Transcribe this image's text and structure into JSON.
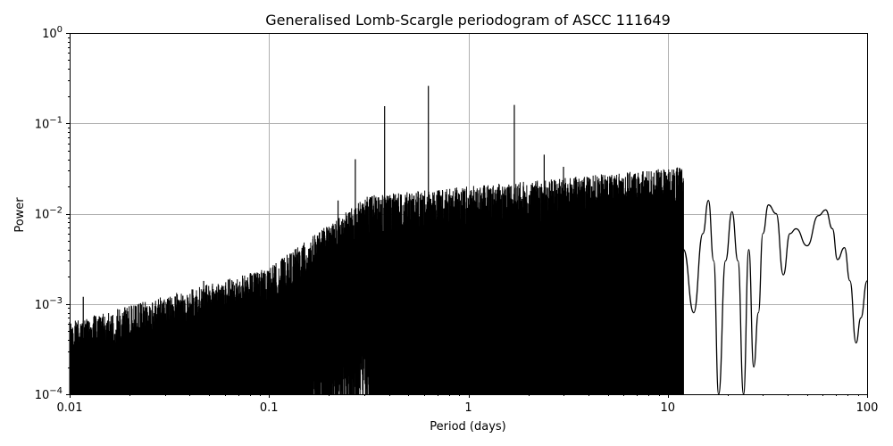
{
  "chart_data": {
    "type": "line",
    "title": "Generalised Lomb-Scargle periodogram of ASCC 111649",
    "xlabel": "Period (days)",
    "ylabel": "Power",
    "xscale": "log",
    "yscale": "log",
    "xlim": [
      0.01,
      100
    ],
    "ylim": [
      0.0001,
      1
    ],
    "grid": true,
    "line_color": "#000000",
    "x_ticks": [
      {
        "value": 0.01,
        "label": "0.01"
      },
      {
        "value": 0.1,
        "label": "0.1"
      },
      {
        "value": 1,
        "label": "1"
      },
      {
        "value": 10,
        "label": "10"
      },
      {
        "value": 100,
        "label": "100"
      }
    ],
    "y_ticks": [
      {
        "value": 0.0001,
        "base": "10",
        "exp": "−4"
      },
      {
        "value": 0.001,
        "base": "10",
        "exp": "−3"
      },
      {
        "value": 0.01,
        "base": "10",
        "exp": "−2"
      },
      {
        "value": 0.1,
        "base": "10",
        "exp": "−1"
      },
      {
        "value": 1,
        "base": "10",
        "exp": "0"
      }
    ],
    "peaks": [
      {
        "period": 0.0117,
        "power": 0.0012
      },
      {
        "period": 0.047,
        "power": 0.0018
      },
      {
        "period": 0.088,
        "power": 0.0022
      },
      {
        "period": 0.128,
        "power": 0.0035
      },
      {
        "period": 0.222,
        "power": 0.014
      },
      {
        "period": 0.271,
        "power": 0.04
      },
      {
        "period": 0.38,
        "power": 0.155
      },
      {
        "period": 0.63,
        "power": 0.26
      },
      {
        "period": 1.7,
        "power": 0.16
      },
      {
        "period": 2.4,
        "power": 0.045
      },
      {
        "period": 3.0,
        "power": 0.033
      },
      {
        "period": 16.0,
        "power": 0.014
      },
      {
        "period": 21.0,
        "power": 0.0105
      },
      {
        "period": 32.0,
        "power": 0.0125
      },
      {
        "period": 42.0,
        "power": 0.0068
      },
      {
        "period": 62.0,
        "power": 0.011
      },
      {
        "period": 77.0,
        "power": 0.0042
      },
      {
        "period": 100.0,
        "power": 0.0018
      }
    ],
    "smooth_tail": [
      {
        "period": 12.0,
        "power": 0.004
      },
      {
        "period": 13.5,
        "power": 0.0008
      },
      {
        "period": 15.0,
        "power": 0.006
      },
      {
        "period": 16.0,
        "power": 0.014
      },
      {
        "period": 17.0,
        "power": 0.003
      },
      {
        "period": 18.0,
        "power": 0.0001
      },
      {
        "period": 19.5,
        "power": 0.003
      },
      {
        "period": 21.0,
        "power": 0.0105
      },
      {
        "period": 22.5,
        "power": 0.003
      },
      {
        "period": 24.0,
        "power": 0.0001
      },
      {
        "period": 25.5,
        "power": 0.004
      },
      {
        "period": 27.0,
        "power": 0.0002
      },
      {
        "period": 28.5,
        "power": 0.0008
      },
      {
        "period": 30.0,
        "power": 0.006
      },
      {
        "period": 32.0,
        "power": 0.0125
      },
      {
        "period": 35.0,
        "power": 0.01
      },
      {
        "period": 38.0,
        "power": 0.0021
      },
      {
        "period": 41.0,
        "power": 0.006
      },
      {
        "period": 44.0,
        "power": 0.0068
      },
      {
        "period": 50.0,
        "power": 0.0044
      },
      {
        "period": 57.0,
        "power": 0.0095
      },
      {
        "period": 62.0,
        "power": 0.011
      },
      {
        "period": 67.0,
        "power": 0.0068
      },
      {
        "period": 71.0,
        "power": 0.0031
      },
      {
        "period": 77.0,
        "power": 0.0042
      },
      {
        "period": 82.0,
        "power": 0.0018
      },
      {
        "period": 88.0,
        "power": 0.00037
      },
      {
        "period": 93.0,
        "power": 0.0007
      },
      {
        "period": 100.0,
        "power": 0.0018
      }
    ]
  }
}
